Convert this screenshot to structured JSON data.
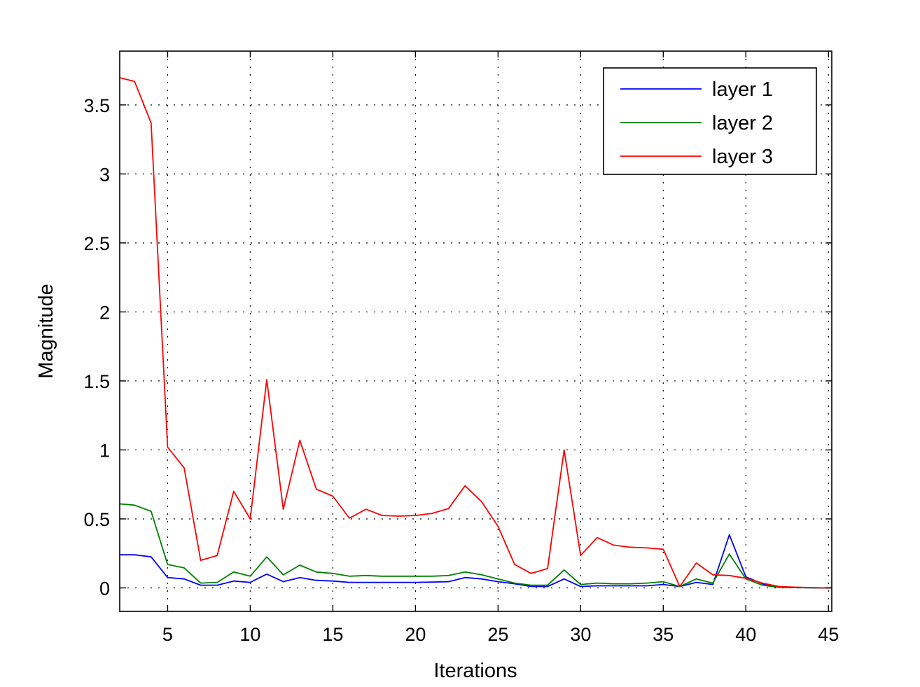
{
  "chart_data": {
    "type": "line",
    "title": "",
    "xlabel": "Iterations",
    "ylabel": "Magnitude",
    "xlim": [
      2.1,
      45.2
    ],
    "ylim": [
      -0.17,
      3.89
    ],
    "xticks": [
      5,
      10,
      15,
      20,
      25,
      30,
      35,
      40,
      45
    ],
    "yticks": [
      0,
      0.5,
      1,
      1.5,
      2,
      2.5,
      3,
      3.5
    ],
    "xtick_labels": [
      "5",
      "10",
      "15",
      "20",
      "25",
      "30",
      "35",
      "40",
      "45"
    ],
    "ytick_labels": [
      "0",
      "0.5",
      "1",
      "1.5",
      "2",
      "2.5",
      "3",
      "3.5"
    ],
    "grid": true,
    "legend_position": "top-right",
    "x": [
      2,
      3,
      4,
      5,
      6,
      7,
      8,
      9,
      10,
      11,
      12,
      13,
      14,
      15,
      16,
      17,
      18,
      19,
      20,
      21,
      22,
      23,
      24,
      25,
      26,
      27,
      28,
      29,
      30,
      31,
      32,
      33,
      34,
      35,
      36,
      37,
      38,
      39,
      40,
      41,
      42,
      43,
      44,
      45,
      46
    ],
    "series": [
      {
        "name": "layer 1",
        "color": "#0000ff",
        "values": [
          0.24,
          0.24,
          0.225,
          0.075,
          0.065,
          0.02,
          0.02,
          0.05,
          0.04,
          0.1,
          0.045,
          0.075,
          0.055,
          0.05,
          0.04,
          0.04,
          0.04,
          0.04,
          0.04,
          0.042,
          0.045,
          0.075,
          0.065,
          0.045,
          0.03,
          0.01,
          0.01,
          0.065,
          0.01,
          0.015,
          0.015,
          0.015,
          0.015,
          0.025,
          0.01,
          0.04,
          0.025,
          0.385,
          0.08,
          0.03,
          0.005,
          0.002,
          0.001,
          0.0,
          0.0
        ]
      },
      {
        "name": "layer 2",
        "color": "#008000",
        "values": [
          0.61,
          0.6,
          0.555,
          0.17,
          0.145,
          0.035,
          0.04,
          0.115,
          0.085,
          0.225,
          0.095,
          0.165,
          0.115,
          0.105,
          0.085,
          0.09,
          0.085,
          0.085,
          0.085,
          0.085,
          0.09,
          0.115,
          0.095,
          0.065,
          0.035,
          0.02,
          0.02,
          0.13,
          0.025,
          0.035,
          0.03,
          0.03,
          0.035,
          0.045,
          0.01,
          0.065,
          0.035,
          0.245,
          0.065,
          0.02,
          0.004,
          0.002,
          0.001,
          0.0,
          0.0
        ]
      },
      {
        "name": "layer 3",
        "color": "#ff0000",
        "values": [
          3.7,
          3.67,
          3.37,
          1.02,
          0.87,
          0.2,
          0.235,
          0.7,
          0.5,
          1.51,
          0.57,
          1.07,
          0.715,
          0.665,
          0.505,
          0.57,
          0.525,
          0.52,
          0.525,
          0.54,
          0.575,
          0.74,
          0.625,
          0.445,
          0.17,
          0.105,
          0.14,
          1.0,
          0.235,
          0.365,
          0.31,
          0.295,
          0.29,
          0.28,
          0.01,
          0.18,
          0.095,
          0.09,
          0.07,
          0.035,
          0.01,
          0.005,
          0.002,
          0.0,
          0.0
        ]
      }
    ]
  }
}
